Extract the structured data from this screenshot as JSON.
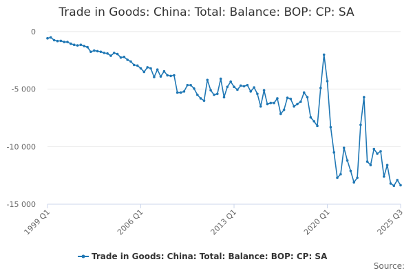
{
  "title": "Trade in Goods: China: Total: Balance: BOP: CP: SA",
  "source_label": "Source:",
  "colors": {
    "series": "#1f77b4",
    "grid": "#e6e6e6",
    "axis": "#ccd6eb"
  },
  "chart_data": {
    "type": "line",
    "title": "Trade in Goods: China: Total: Balance: BOP: CP: SA",
    "xlabel": "",
    "ylabel": "",
    "ylim": [
      -15000,
      0
    ],
    "y_ticks": [
      0,
      -5000,
      -10000,
      -15000
    ],
    "y_tick_labels": [
      "0",
      "-5 000",
      "-10 000",
      "-15 000"
    ],
    "x_ticks": [
      "1999 Q1",
      "2006 Q1",
      "2013 Q1",
      "2020 Q1",
      "2025 Q3"
    ],
    "grid": true,
    "legend_position": "bottom",
    "series": [
      {
        "name": "Trade in Goods: China: Total: Balance: BOP: CP: SA",
        "x_start": "1999 Q1",
        "x_end": "2025 Q3",
        "values": [
          -580,
          -500,
          -750,
          -820,
          -800,
          -900,
          -900,
          -1050,
          -1150,
          -1200,
          -1150,
          -1250,
          -1350,
          -1750,
          -1650,
          -1700,
          -1750,
          -1850,
          -1900,
          -2100,
          -1850,
          -1950,
          -2250,
          -2200,
          -2450,
          -2600,
          -2900,
          -2950,
          -3200,
          -3500,
          -3100,
          -3200,
          -3950,
          -3300,
          -3900,
          -3450,
          -3800,
          -3850,
          -3800,
          -5300,
          -5300,
          -5200,
          -4650,
          -4650,
          -4950,
          -5500,
          -5800,
          -6000,
          -4200,
          -5100,
          -5500,
          -5400,
          -4100,
          -5700,
          -4800,
          -4350,
          -4800,
          -5050,
          -4700,
          -4750,
          -4650,
          -5200,
          -4850,
          -5400,
          -6500,
          -5100,
          -6300,
          -6200,
          -6200,
          -5800,
          -7150,
          -6800,
          -5750,
          -5850,
          -6500,
          -6300,
          -6100,
          -5300,
          -5700,
          -7450,
          -7800,
          -8200,
          -4900,
          -2000,
          -4300,
          -8300,
          -10500,
          -12700,
          -12400,
          -10100,
          -11200,
          -12100,
          -13100,
          -12700,
          -8100,
          -5700,
          -11300,
          -11600,
          -10200,
          -10600,
          -10400,
          -12600,
          -11600,
          -13200,
          -13400,
          -12900,
          -13350
        ]
      }
    ]
  }
}
